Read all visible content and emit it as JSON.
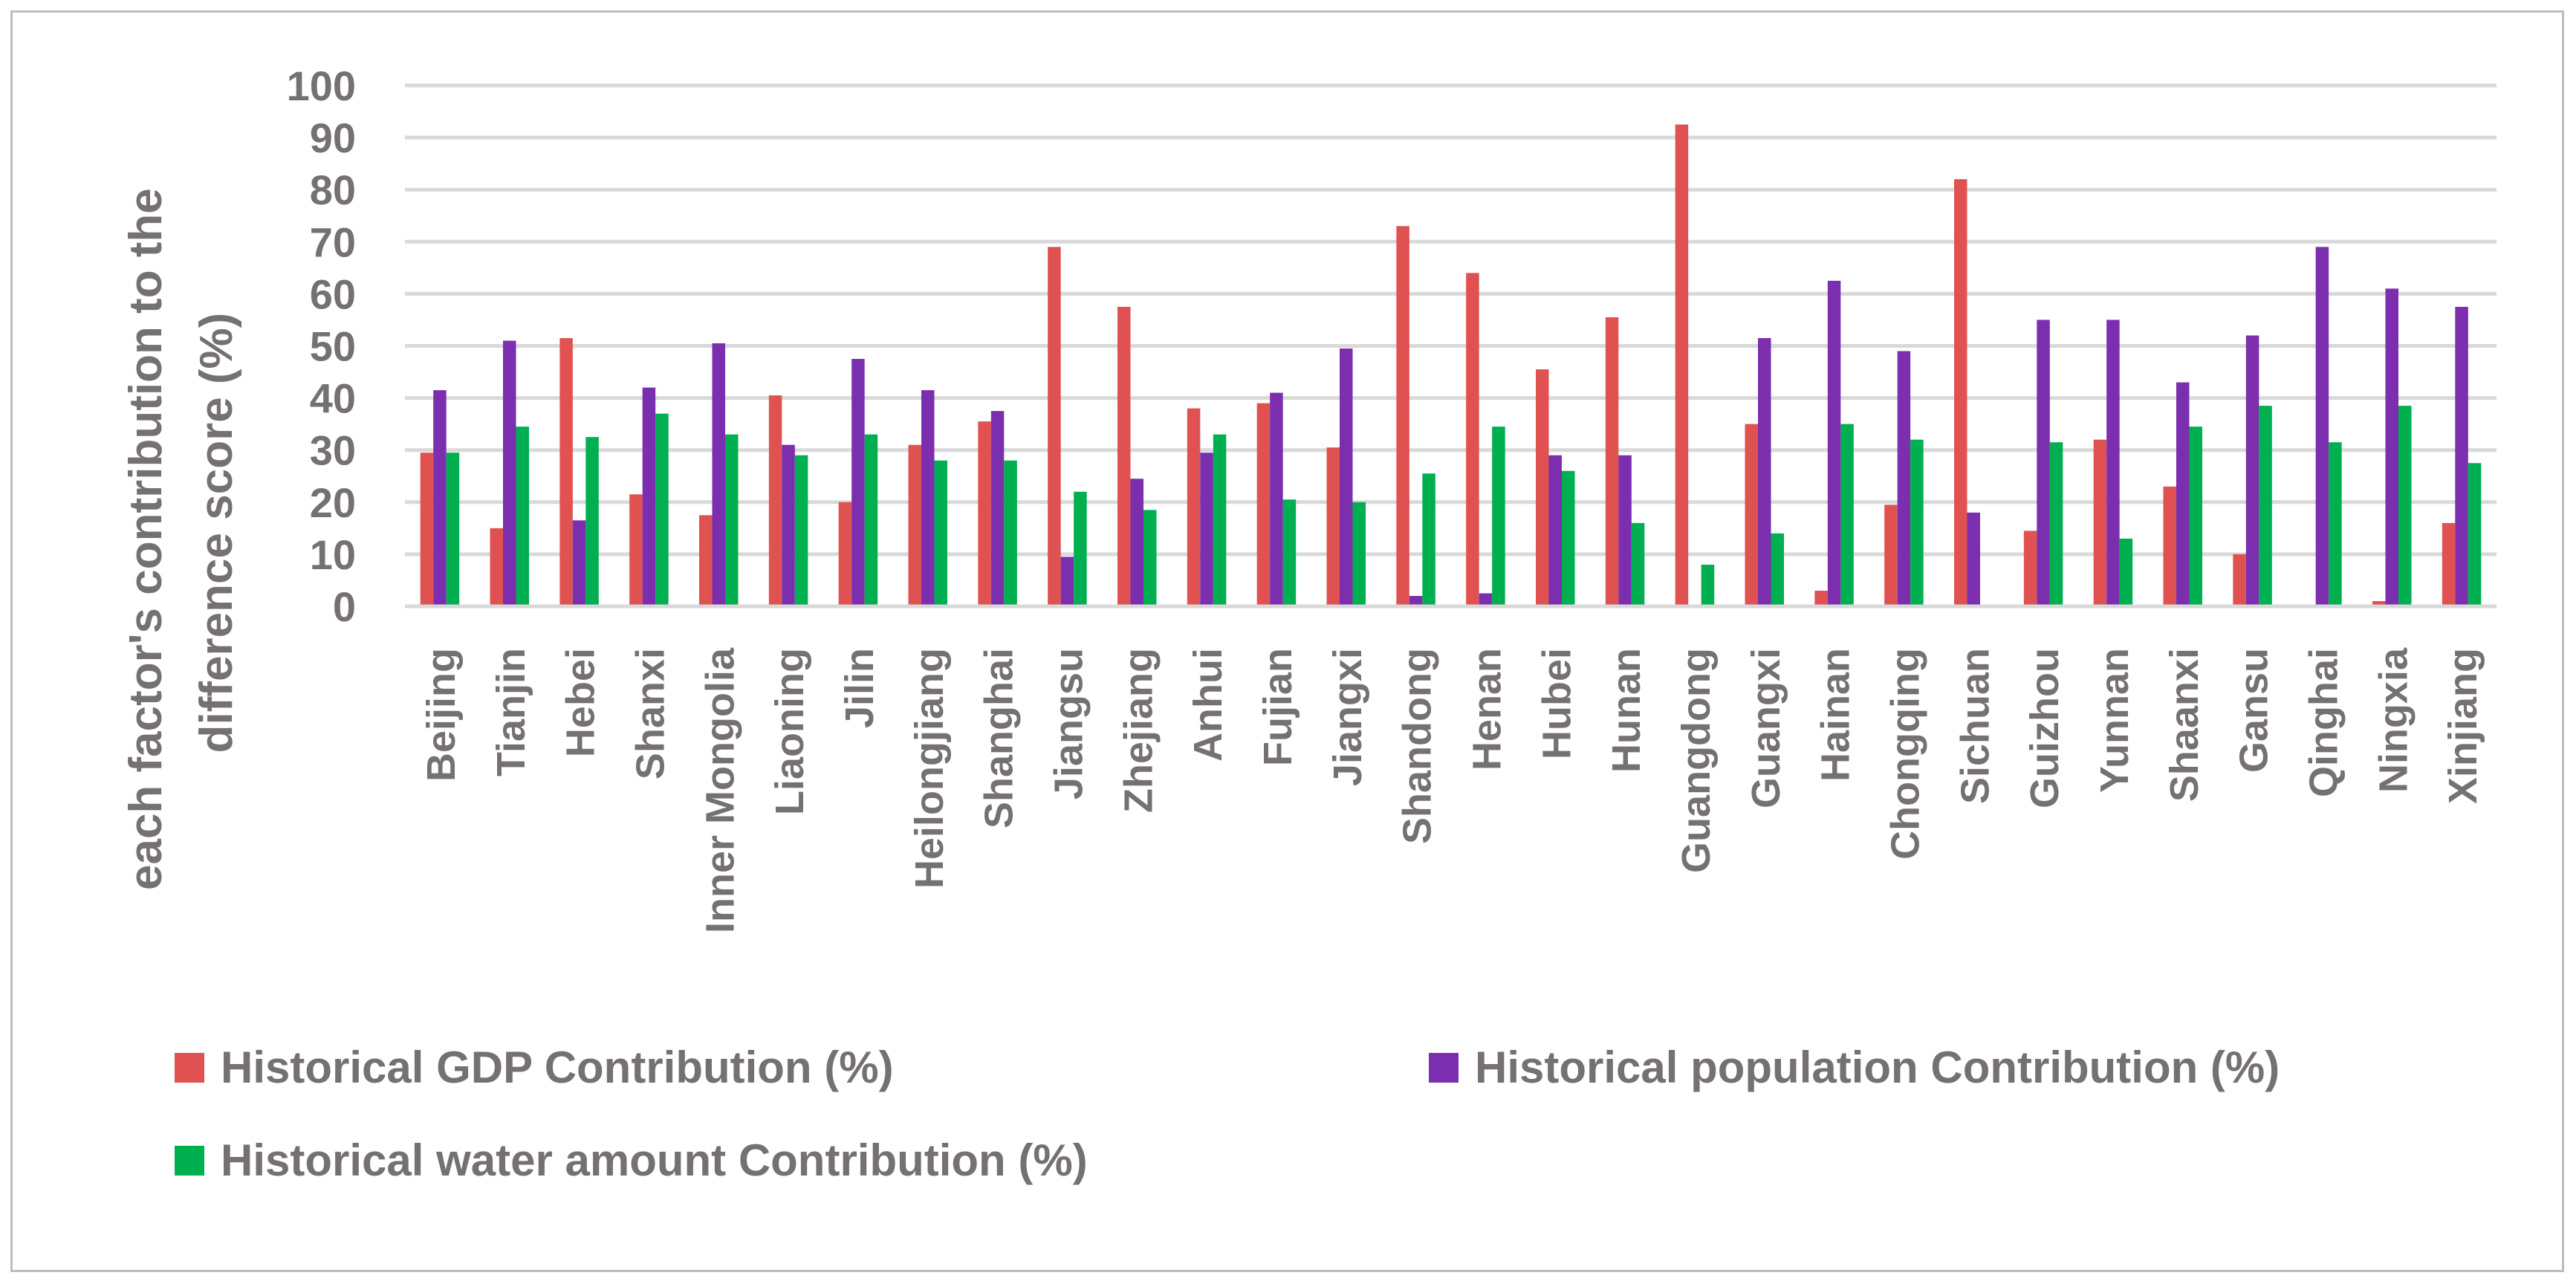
{
  "chart_data": {
    "type": "bar",
    "title": "",
    "xlabel": "",
    "ylabel_lines": [
      "each factor's contribution to the",
      "difference score (%)"
    ],
    "ylim": [
      0,
      100
    ],
    "yticks": [
      0,
      10,
      20,
      30,
      40,
      50,
      60,
      70,
      80,
      90,
      100
    ],
    "grid": true,
    "legend_position": "bottom",
    "categories": [
      "Beijing",
      "Tianjin",
      "Hebei",
      "Shanxi",
      "Inner Mongolia",
      "Liaoning",
      "Jilin",
      "Heilongjiang",
      "Shanghai",
      "Jiangsu",
      "Zhejiang",
      "Anhui",
      "Fujian",
      "Jiangxi",
      "Shandong",
      "Henan",
      "Hubei",
      "Hunan",
      "Guangdong",
      "Guangxi",
      "Hainan",
      "Chongqing",
      "Sichuan",
      "Guizhou",
      "Yunnan",
      "Shaanxi",
      "Gansu",
      "Qinghai",
      "Ningxia",
      "Xinjiang"
    ],
    "series": [
      {
        "name": "Historical GDP Contribution (%)",
        "color": "#E05252",
        "values": [
          29.5,
          15,
          51.5,
          21.5,
          17.5,
          40.5,
          20,
          31,
          35.5,
          69,
          57.5,
          38,
          39,
          30.5,
          73,
          64,
          45.5,
          55.5,
          92.5,
          35,
          3,
          19.5,
          82,
          14.5,
          32,
          23,
          10,
          0,
          1,
          16
        ]
      },
      {
        "name": "Historical population Contribution (%)",
        "color": "#7B2FAF",
        "values": [
          41.5,
          51,
          16.5,
          42,
          50.5,
          31,
          47.5,
          41.5,
          37.5,
          9.5,
          24.5,
          29.5,
          41,
          49.5,
          2,
          2.5,
          29,
          29,
          0,
          51.5,
          62.5,
          49,
          18,
          55,
          55,
          43,
          52,
          69,
          61,
          57.5
        ]
      },
      {
        "name": "Historical water amount Contribution (%)",
        "color": "#00B050",
        "values": [
          29.5,
          34.5,
          32.5,
          37,
          33,
          29,
          33,
          28,
          28,
          22,
          18.5,
          33,
          20.5,
          20,
          25.5,
          34.5,
          26,
          16,
          8,
          14,
          35,
          32,
          0,
          31.5,
          13,
          34.5,
          38.5,
          31.5,
          38.5,
          27.5
        ]
      }
    ]
  }
}
